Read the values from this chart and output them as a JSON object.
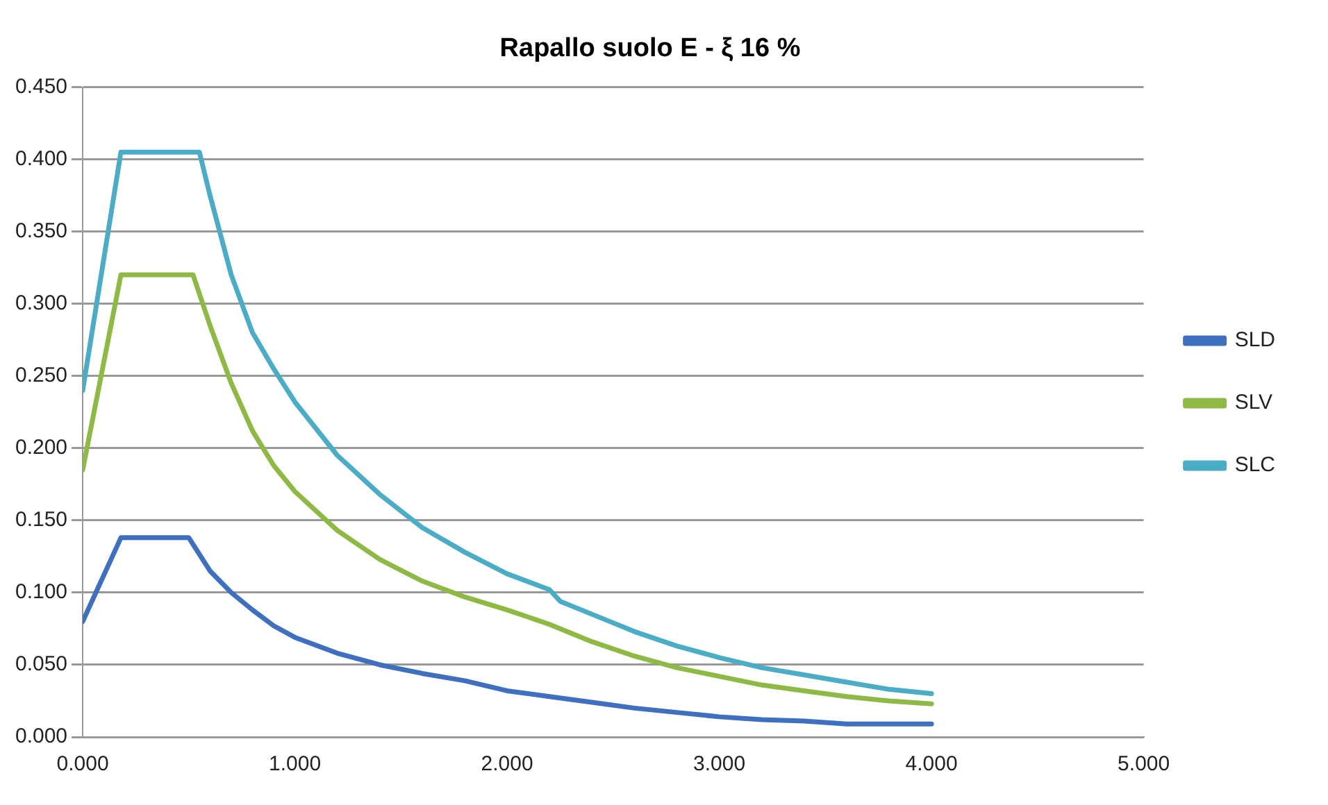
{
  "chart_data": {
    "type": "line",
    "title": "Rapallo suolo E - ξ 16 %",
    "legend": "right",
    "grid": "y",
    "marker": "none",
    "line_style": "solid",
    "xlim": [
      0,
      5
    ],
    "xticks": [
      {
        "value": 0,
        "label": "0.000"
      },
      {
        "value": 1,
        "label": "1.000"
      },
      {
        "value": 2,
        "label": "2.000"
      },
      {
        "value": 3,
        "label": "3.000"
      },
      {
        "value": 4,
        "label": "4.000"
      },
      {
        "value": 5,
        "label": "5.000"
      }
    ],
    "ylim": [
      0,
      0.45
    ],
    "yticks": [
      {
        "value": 0,
        "label": "0.000"
      },
      {
        "value": 0.05,
        "label": "0.050"
      },
      {
        "value": 0.1,
        "label": "0.100"
      },
      {
        "value": 0.15,
        "label": "0.150"
      },
      {
        "value": 0.2,
        "label": "0.200"
      },
      {
        "value": 0.25,
        "label": "0.250"
      },
      {
        "value": 0.3,
        "label": "0.300"
      },
      {
        "value": 0.35,
        "label": "0.350"
      },
      {
        "value": 0.4,
        "label": "0.400"
      },
      {
        "value": 0.45,
        "label": "0.450"
      }
    ],
    "series": [
      {
        "name": "SLD",
        "color": "#3f6fbf",
        "x": [
          0,
          0.18,
          0.5,
          0.6,
          0.7,
          0.8,
          0.9,
          1.0,
          1.2,
          1.4,
          1.6,
          1.8,
          2.0,
          2.2,
          2.4,
          2.6,
          2.8,
          3.0,
          3.2,
          3.4,
          3.6,
          3.8,
          4.0
        ],
        "values": [
          0.08,
          0.138,
          0.138,
          0.115,
          0.1,
          0.088,
          0.077,
          0.069,
          0.058,
          0.05,
          0.044,
          0.039,
          0.032,
          0.028,
          0.024,
          0.02,
          0.017,
          0.014,
          0.012,
          0.011,
          0.009,
          0.009,
          0.009
        ]
      },
      {
        "name": "SLV",
        "color": "#8db944",
        "x": [
          0,
          0.18,
          0.52,
          0.6,
          0.7,
          0.8,
          0.9,
          1.0,
          1.2,
          1.4,
          1.6,
          1.8,
          2.0,
          2.2,
          2.4,
          2.6,
          2.8,
          3.0,
          3.2,
          3.4,
          3.6,
          3.8,
          4.0
        ],
        "values": [
          0.185,
          0.32,
          0.32,
          0.285,
          0.245,
          0.212,
          0.188,
          0.17,
          0.143,
          0.123,
          0.108,
          0.097,
          0.088,
          0.078,
          0.066,
          0.056,
          0.048,
          0.042,
          0.036,
          0.032,
          0.028,
          0.025,
          0.023
        ]
      },
      {
        "name": "SLC",
        "color": "#4bacc6",
        "x": [
          0,
          0.18,
          0.55,
          0.6,
          0.7,
          0.8,
          0.9,
          1.0,
          1.2,
          1.4,
          1.6,
          1.8,
          2.0,
          2.2,
          2.25,
          2.4,
          2.6,
          2.8,
          3.0,
          3.2,
          3.4,
          3.6,
          3.8,
          4.0
        ],
        "values": [
          0.24,
          0.405,
          0.405,
          0.375,
          0.32,
          0.28,
          0.255,
          0.232,
          0.195,
          0.168,
          0.145,
          0.128,
          0.113,
          0.102,
          0.094,
          0.085,
          0.073,
          0.063,
          0.055,
          0.048,
          0.043,
          0.038,
          0.033,
          0.03
        ]
      }
    ]
  }
}
